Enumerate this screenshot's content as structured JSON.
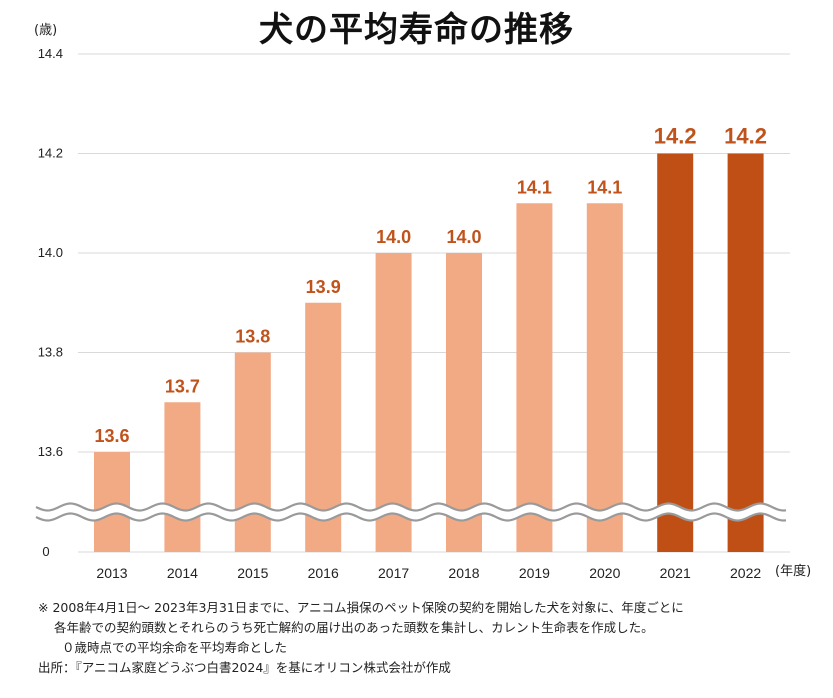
{
  "chart_data": {
    "type": "bar",
    "title": "犬の平均寿命の推移",
    "ylabel": "(歳)",
    "xlabel": "(年度)",
    "categories": [
      "2013",
      "2014",
      "2015",
      "2016",
      "2017",
      "2018",
      "2019",
      "2020",
      "2021",
      "2022"
    ],
    "values": [
      13.6,
      13.7,
      13.8,
      13.9,
      14.0,
      14.0,
      14.1,
      14.1,
      14.2,
      14.2
    ],
    "value_labels": [
      "13.6",
      "13.7",
      "13.8",
      "13.9",
      "14.0",
      "14.0",
      "14.1",
      "14.1",
      "14.2",
      "14.2"
    ],
    "y_ticks": [
      "14.4",
      "14.2",
      "14.0",
      "13.8",
      "13.6"
    ],
    "y_tick_values": [
      14.4,
      14.2,
      14.0,
      13.8,
      13.6
    ],
    "y_zero_label": "0",
    "ylim": [
      13.4,
      14.4
    ],
    "axis_break": true,
    "grid": true,
    "colors": {
      "normal": "#F2AA85",
      "highlight": "#C04F16",
      "label": "#C0531C",
      "grid": "#D9D9D9"
    },
    "highlight_categories": [
      "2021",
      "2022"
    ]
  },
  "notes": {
    "line1": "※ 2008年4月1日～ 2023年3月31日までに、アニコム損保のペット保険の契約を開始した犬を対象に、年度ごとに",
    "line2": "各年齢での契約頭数とそれらのうち死亡解約の届け出のあった頭数を集計し、カレント生命表を作成した。",
    "line3": "０歳時点での平均余命を平均寿命とした",
    "source": "出所：『アニコム家庭どうぶつ白書2024』を基にオリコン株式会社が作成"
  }
}
